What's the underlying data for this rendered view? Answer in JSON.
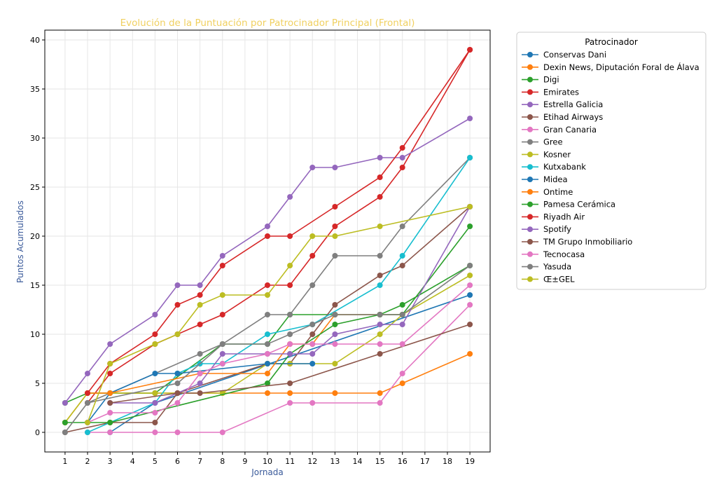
{
  "chart_data": {
    "type": "line",
    "title": "Evolución de la Puntuación por Patrocinador Principal (Frontal)",
    "xlabel": "Jornada",
    "ylabel": "Puntos Acumulados",
    "x_ticks": [
      1,
      2,
      3,
      4,
      5,
      6,
      7,
      8,
      9,
      10,
      11,
      12,
      13,
      14,
      15,
      16,
      17,
      18,
      19
    ],
    "y_ticks": [
      0,
      5,
      10,
      15,
      20,
      25,
      30,
      35,
      40
    ],
    "xlim": [
      0.1,
      19.9
    ],
    "ylim": [
      -2,
      41
    ],
    "grid": true,
    "legend_title": "Patrocinador",
    "legend_position": "outside right, top",
    "title_color": "#f0d060",
    "label_color": "#3a5a9a",
    "series": [
      {
        "name": "Conservas Dani",
        "color": "#1f77b4",
        "points": [
          [
            3,
            0
          ],
          [
            5,
            3
          ],
          [
            19,
            14
          ]
        ]
      },
      {
        "name": "Dexin News, Diputación Foral de Álava",
        "color": "#ff7f0e",
        "points": [
          [
            1,
            1
          ],
          [
            2,
            4
          ],
          [
            5,
            4
          ],
          [
            8,
            4
          ],
          [
            10,
            4
          ],
          [
            11,
            4
          ],
          [
            13,
            4
          ],
          [
            15,
            4
          ],
          [
            16,
            5
          ],
          [
            19,
            8
          ]
        ]
      },
      {
        "name": "Digi",
        "color": "#2ca02c",
        "points": [
          [
            1,
            3
          ],
          [
            2,
            4
          ],
          [
            5,
            4
          ],
          [
            8,
            9
          ],
          [
            10,
            9
          ],
          [
            11,
            12
          ],
          [
            13,
            12
          ],
          [
            15,
            12
          ],
          [
            16,
            13
          ],
          [
            19,
            17
          ]
        ]
      },
      {
        "name": "Emirates",
        "color": "#d62728",
        "points": [
          [
            2,
            3
          ],
          [
            3,
            6
          ],
          [
            5,
            9
          ],
          [
            6,
            10
          ],
          [
            7,
            11
          ],
          [
            8,
            12
          ],
          [
            10,
            15
          ],
          [
            11,
            15
          ],
          [
            12,
            18
          ],
          [
            13,
            21
          ],
          [
            15,
            24
          ],
          [
            16,
            27
          ],
          [
            19,
            39
          ]
        ]
      },
      {
        "name": "Estrella Galicia",
        "color": "#9467bd",
        "points": [
          [
            1,
            3
          ],
          [
            2,
            6
          ],
          [
            3,
            9
          ],
          [
            5,
            12
          ],
          [
            6,
            15
          ],
          [
            7,
            15
          ],
          [
            8,
            18
          ],
          [
            10,
            21
          ],
          [
            11,
            24
          ],
          [
            12,
            27
          ],
          [
            13,
            27
          ],
          [
            15,
            28
          ],
          [
            16,
            28
          ],
          [
            19,
            32
          ]
        ]
      },
      {
        "name": "Etihad Airways",
        "color": "#8c564b",
        "points": [
          [
            1,
            0
          ],
          [
            3,
            1
          ],
          [
            5,
            1
          ],
          [
            6,
            4
          ],
          [
            10,
            7
          ],
          [
            11,
            7
          ],
          [
            12,
            10
          ],
          [
            13,
            13
          ],
          [
            15,
            16
          ],
          [
            16,
            17
          ],
          [
            19,
            23
          ]
        ]
      },
      {
        "name": "Gran Canaria",
        "color": "#e377c2",
        "points": [
          [
            2,
            0
          ],
          [
            3,
            0
          ],
          [
            5,
            0
          ],
          [
            6,
            0
          ],
          [
            8,
            0
          ],
          [
            11,
            3
          ],
          [
            12,
            3
          ],
          [
            15,
            3
          ],
          [
            16,
            6
          ],
          [
            19,
            13
          ]
        ]
      },
      {
        "name": "Gree",
        "color": "#7f7f7f",
        "points": [
          [
            2,
            3
          ],
          [
            3,
            4
          ],
          [
            7,
            8
          ],
          [
            8,
            9
          ],
          [
            10,
            12
          ],
          [
            11,
            12
          ],
          [
            12,
            15
          ],
          [
            13,
            18
          ],
          [
            15,
            18
          ],
          [
            16,
            21
          ],
          [
            19,
            28
          ]
        ]
      },
      {
        "name": "Kosner",
        "color": "#bcbd22",
        "points": [
          [
            1,
            1
          ],
          [
            2,
            4
          ],
          [
            5,
            4
          ],
          [
            8,
            4
          ],
          [
            10,
            7
          ],
          [
            11,
            7
          ],
          [
            13,
            7
          ],
          [
            15,
            10
          ],
          [
            16,
            12
          ],
          [
            19,
            16
          ]
        ]
      },
      {
        "name": "Kutxabank",
        "color": "#17becf",
        "points": [
          [
            2,
            0
          ],
          [
            5,
            3
          ],
          [
            6,
            6
          ],
          [
            7,
            7
          ],
          [
            8,
            7
          ],
          [
            10,
            10
          ],
          [
            12,
            11
          ],
          [
            15,
            15
          ],
          [
            16,
            18
          ],
          [
            19,
            28
          ]
        ]
      },
      {
        "name": "Midea",
        "color": "#1f77b4",
        "points": [
          [
            2,
            1
          ],
          [
            3,
            4
          ],
          [
            5,
            6
          ],
          [
            6,
            6
          ],
          [
            10,
            7
          ],
          [
            12,
            7
          ]
        ]
      },
      {
        "name": "Ontime",
        "color": "#ff7f0e",
        "points": [
          [
            2,
            4
          ],
          [
            3,
            4
          ],
          [
            7,
            6
          ],
          [
            10,
            6
          ],
          [
            11,
            9
          ],
          [
            12,
            9
          ],
          [
            13,
            12
          ],
          [
            15,
            12
          ],
          [
            16,
            12
          ]
        ]
      },
      {
        "name": "Pamesa Cerámica",
        "color": "#2ca02c",
        "points": [
          [
            1,
            1
          ],
          [
            3,
            1
          ],
          [
            10,
            5
          ],
          [
            11,
            8
          ],
          [
            13,
            11
          ],
          [
            15,
            12
          ],
          [
            16,
            12
          ],
          [
            19,
            21
          ]
        ]
      },
      {
        "name": "Riyadh Air",
        "color": "#d62728",
        "points": [
          [
            2,
            4
          ],
          [
            3,
            7
          ],
          [
            5,
            10
          ],
          [
            6,
            13
          ],
          [
            7,
            14
          ],
          [
            8,
            17
          ],
          [
            10,
            20
          ],
          [
            11,
            20
          ],
          [
            13,
            23
          ],
          [
            15,
            26
          ],
          [
            16,
            29
          ],
          [
            19,
            39
          ]
        ]
      },
      {
        "name": "Spotify",
        "color": "#9467bd",
        "points": [
          [
            3,
            3
          ],
          [
            5,
            3
          ],
          [
            7,
            5
          ],
          [
            8,
            8
          ],
          [
            10,
            8
          ],
          [
            11,
            8
          ],
          [
            12,
            8
          ],
          [
            13,
            10
          ],
          [
            15,
            11
          ],
          [
            16,
            11
          ],
          [
            19,
            23
          ]
        ]
      },
      {
        "name": "TM Grupo Inmobiliario",
        "color": "#8c564b",
        "points": [
          [
            3,
            3
          ],
          [
            6,
            4
          ],
          [
            7,
            4
          ],
          [
            11,
            5
          ],
          [
            15,
            8
          ],
          [
            19,
            11
          ]
        ]
      },
      {
        "name": "Tecnocasa",
        "color": "#e377c2",
        "points": [
          [
            2,
            1
          ],
          [
            3,
            2
          ],
          [
            5,
            2
          ],
          [
            6,
            3
          ],
          [
            7,
            6
          ],
          [
            8,
            7
          ],
          [
            10,
            8
          ],
          [
            11,
            9
          ],
          [
            12,
            9
          ],
          [
            13,
            9
          ],
          [
            15,
            9
          ],
          [
            16,
            9
          ],
          [
            19,
            15
          ]
        ]
      },
      {
        "name": "Yasuda",
        "color": "#7f7f7f",
        "points": [
          [
            1,
            0
          ],
          [
            2,
            3
          ],
          [
            6,
            5
          ],
          [
            8,
            9
          ],
          [
            10,
            9
          ],
          [
            11,
            10
          ],
          [
            12,
            11
          ],
          [
            13,
            12
          ],
          [
            15,
            12
          ],
          [
            16,
            12
          ],
          [
            19,
            17
          ]
        ]
      },
      {
        "name": "Œ±GEL",
        "color": "#bcbd22",
        "points": [
          [
            2,
            1
          ],
          [
            3,
            7
          ],
          [
            5,
            9
          ],
          [
            6,
            10
          ],
          [
            7,
            13
          ],
          [
            8,
            14
          ],
          [
            10,
            14
          ],
          [
            11,
            17
          ],
          [
            12,
            20
          ],
          [
            13,
            20
          ],
          [
            15,
            21
          ],
          [
            19,
            23
          ]
        ]
      }
    ]
  }
}
